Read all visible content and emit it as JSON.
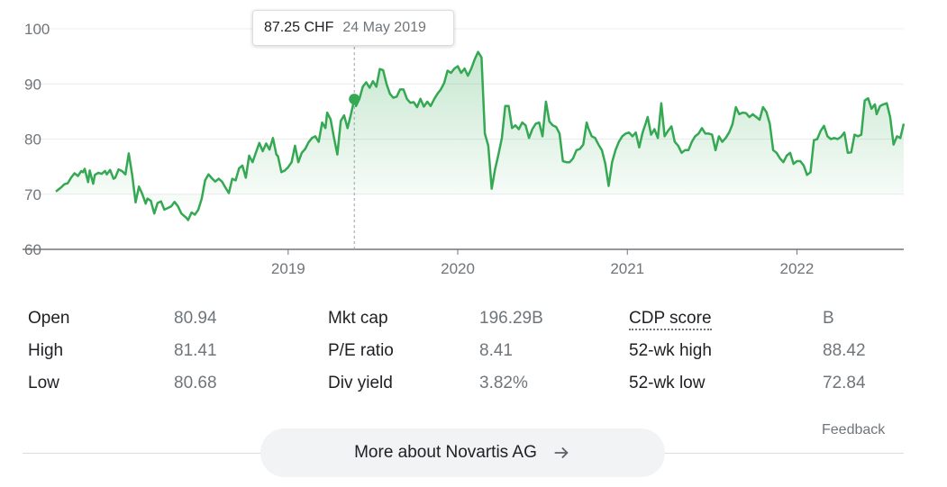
{
  "chart_data": {
    "type": "area",
    "title": "",
    "xlabel": "",
    "ylabel": "",
    "ylim": [
      60,
      100
    ],
    "y_ticks": [
      100,
      90,
      80,
      70,
      60
    ],
    "x_ticks": [
      {
        "label": "2019",
        "t": 2019.0
      },
      {
        "label": "2020",
        "t": 2020.0
      },
      {
        "label": "2021",
        "t": 2021.0
      },
      {
        "label": "2022",
        "t": 2022.0
      }
    ],
    "x_range": [
      2017.63,
      2022.63
    ],
    "currency": "CHF",
    "color": "#34a853",
    "fill_color": "#34a853",
    "series": [
      {
        "name": "Novartis AG",
        "points": [
          [
            2017.63,
            70.5
          ],
          [
            2017.66,
            71.2
          ],
          [
            2017.68,
            71.8
          ],
          [
            2017.7,
            72.0
          ],
          [
            2017.72,
            73.0
          ],
          [
            2017.74,
            73.8
          ],
          [
            2017.76,
            73.3
          ],
          [
            2017.78,
            74.2
          ],
          [
            2017.79,
            74.0
          ],
          [
            2017.8,
            74.6
          ],
          [
            2017.82,
            72.2
          ],
          [
            2017.83,
            74.3
          ],
          [
            2017.85,
            71.9
          ],
          [
            2017.86,
            73.5
          ],
          [
            2017.88,
            73.9
          ],
          [
            2017.9,
            73.7
          ],
          [
            2017.92,
            74.2
          ],
          [
            2017.93,
            73.6
          ],
          [
            2017.95,
            74.4
          ],
          [
            2017.97,
            72.8
          ],
          [
            2017.98,
            73.0
          ],
          [
            2018.0,
            74.5
          ],
          [
            2018.02,
            74.2
          ],
          [
            2018.04,
            73.6
          ],
          [
            2018.06,
            77.4
          ],
          [
            2018.08,
            73.5
          ],
          [
            2018.1,
            68.5
          ],
          [
            2018.12,
            71.4
          ],
          [
            2018.14,
            70.0
          ],
          [
            2018.16,
            68.3
          ],
          [
            2018.17,
            69.2
          ],
          [
            2018.19,
            68.8
          ],
          [
            2018.21,
            66.5
          ],
          [
            2018.23,
            68.4
          ],
          [
            2018.25,
            68.7
          ],
          [
            2018.27,
            67.2
          ],
          [
            2018.29,
            67.5
          ],
          [
            2018.31,
            67.8
          ],
          [
            2018.33,
            68.6
          ],
          [
            2018.35,
            67.8
          ],
          [
            2018.37,
            66.5
          ],
          [
            2018.4,
            65.7
          ],
          [
            2018.41,
            65.3
          ],
          [
            2018.43,
            66.7
          ],
          [
            2018.45,
            66.3
          ],
          [
            2018.47,
            67.2
          ],
          [
            2018.49,
            69.2
          ],
          [
            2018.51,
            72.5
          ],
          [
            2018.53,
            73.6
          ],
          [
            2018.55,
            72.9
          ],
          [
            2018.57,
            72.3
          ],
          [
            2018.59,
            72.8
          ],
          [
            2018.61,
            72.3
          ],
          [
            2018.63,
            71.2
          ],
          [
            2018.65,
            70.2
          ],
          [
            2018.67,
            72.8
          ],
          [
            2018.69,
            72.5
          ],
          [
            2018.71,
            74.7
          ],
          [
            2018.73,
            75.2
          ],
          [
            2018.75,
            73.0
          ],
          [
            2018.77,
            77.0
          ],
          [
            2018.79,
            75.8
          ],
          [
            2018.81,
            77.6
          ],
          [
            2018.83,
            79.3
          ],
          [
            2018.85,
            77.8
          ],
          [
            2018.87,
            79.2
          ],
          [
            2018.89,
            78.1
          ],
          [
            2018.91,
            80.2
          ],
          [
            2018.93,
            77.2
          ],
          [
            2018.94,
            76.9
          ],
          [
            2018.96,
            74.0
          ],
          [
            2018.98,
            74.3
          ],
          [
            2019.0,
            74.9
          ],
          [
            2019.02,
            75.8
          ],
          [
            2019.04,
            78.8
          ],
          [
            2019.06,
            75.8
          ],
          [
            2019.08,
            77.5
          ],
          [
            2019.1,
            78.2
          ],
          [
            2019.12,
            79.4
          ],
          [
            2019.14,
            80.2
          ],
          [
            2019.16,
            80.5
          ],
          [
            2019.18,
            79.5
          ],
          [
            2019.2,
            83.0
          ],
          [
            2019.22,
            82.0
          ],
          [
            2019.23,
            84.8
          ],
          [
            2019.25,
            83.6
          ],
          [
            2019.27,
            80.3
          ],
          [
            2019.29,
            77.2
          ],
          [
            2019.31,
            83.3
          ],
          [
            2019.33,
            84.3
          ],
          [
            2019.35,
            82.0
          ],
          [
            2019.37,
            84.5
          ],
          [
            2019.39,
            87.25
          ],
          [
            2019.4,
            86.0
          ],
          [
            2019.42,
            87.3
          ],
          [
            2019.44,
            89.5
          ],
          [
            2019.46,
            90.3
          ],
          [
            2019.48,
            89.3
          ],
          [
            2019.5,
            90.5
          ],
          [
            2019.52,
            89.5
          ],
          [
            2019.54,
            92.7
          ],
          [
            2019.56,
            92.5
          ],
          [
            2019.58,
            90.0
          ],
          [
            2019.6,
            88.2
          ],
          [
            2019.62,
            87.5
          ],
          [
            2019.64,
            87.7
          ],
          [
            2019.66,
            89.0
          ],
          [
            2019.68,
            89.0
          ],
          [
            2019.7,
            87.3
          ],
          [
            2019.72,
            86.6
          ],
          [
            2019.74,
            86.7
          ],
          [
            2019.76,
            85.8
          ],
          [
            2019.78,
            87.3
          ],
          [
            2019.8,
            85.9
          ],
          [
            2019.82,
            86.8
          ],
          [
            2019.84,
            86.0
          ],
          [
            2019.86,
            87.2
          ],
          [
            2019.88,
            88.2
          ],
          [
            2019.9,
            89.0
          ],
          [
            2019.92,
            90.2
          ],
          [
            2019.94,
            92.4
          ],
          [
            2019.96,
            92.0
          ],
          [
            2019.98,
            92.8
          ],
          [
            2020.0,
            93.2
          ],
          [
            2020.02,
            92.0
          ],
          [
            2020.04,
            92.8
          ],
          [
            2020.06,
            91.5
          ],
          [
            2020.08,
            92.8
          ],
          [
            2020.1,
            94.5
          ],
          [
            2020.12,
            95.8
          ],
          [
            2020.14,
            94.8
          ],
          [
            2020.16,
            81.0
          ],
          [
            2020.18,
            78.8
          ],
          [
            2020.2,
            71.0
          ],
          [
            2020.22,
            74.5
          ],
          [
            2020.24,
            77.2
          ],
          [
            2020.26,
            80.2
          ],
          [
            2020.28,
            86.0
          ],
          [
            2020.3,
            86.0
          ],
          [
            2020.32,
            82.0
          ],
          [
            2020.34,
            82.5
          ],
          [
            2020.36,
            81.8
          ],
          [
            2020.38,
            83.0
          ],
          [
            2020.4,
            82.5
          ],
          [
            2020.42,
            80.2
          ],
          [
            2020.44,
            81.8
          ],
          [
            2020.46,
            82.8
          ],
          [
            2020.48,
            83.0
          ],
          [
            2020.5,
            80.5
          ],
          [
            2020.52,
            86.8
          ],
          [
            2020.54,
            83.2
          ],
          [
            2020.56,
            82.5
          ],
          [
            2020.58,
            82.2
          ],
          [
            2020.6,
            81.0
          ],
          [
            2020.62,
            76.0
          ],
          [
            2020.64,
            75.8
          ],
          [
            2020.66,
            75.8
          ],
          [
            2020.68,
            76.5
          ],
          [
            2020.7,
            78.0
          ],
          [
            2020.72,
            78.2
          ],
          [
            2020.74,
            79.0
          ],
          [
            2020.76,
            83.0
          ],
          [
            2020.77,
            82.0
          ],
          [
            2020.79,
            80.5
          ],
          [
            2020.81,
            80.2
          ],
          [
            2020.83,
            79.0
          ],
          [
            2020.85,
            78.0
          ],
          [
            2020.87,
            75.5
          ],
          [
            2020.89,
            71.5
          ],
          [
            2020.91,
            75.8
          ],
          [
            2020.93,
            78.0
          ],
          [
            2020.95,
            79.5
          ],
          [
            2020.97,
            80.5
          ],
          [
            2020.99,
            81.0
          ],
          [
            2021.01,
            81.2
          ],
          [
            2021.03,
            80.5
          ],
          [
            2021.05,
            81.2
          ],
          [
            2021.07,
            78.5
          ],
          [
            2021.09,
            81.2
          ],
          [
            2021.11,
            83.0
          ],
          [
            2021.12,
            84.0
          ],
          [
            2021.14,
            80.8
          ],
          [
            2021.16,
            81.8
          ],
          [
            2021.18,
            80.2
          ],
          [
            2021.2,
            86.5
          ],
          [
            2021.22,
            80.5
          ],
          [
            2021.24,
            81.5
          ],
          [
            2021.26,
            82.3
          ],
          [
            2021.28,
            79.5
          ],
          [
            2021.3,
            78.8
          ],
          [
            2021.32,
            77.5
          ],
          [
            2021.34,
            78.0
          ],
          [
            2021.36,
            78.0
          ],
          [
            2021.38,
            79.5
          ],
          [
            2021.4,
            80.5
          ],
          [
            2021.42,
            81.0
          ],
          [
            2021.44,
            82.0
          ],
          [
            2021.46,
            81.0
          ],
          [
            2021.48,
            81.0
          ],
          [
            2021.5,
            80.8
          ],
          [
            2021.52,
            78.0
          ],
          [
            2021.54,
            80.5
          ],
          [
            2021.56,
            79.5
          ],
          [
            2021.58,
            80.2
          ],
          [
            2021.6,
            81.2
          ],
          [
            2021.62,
            82.7
          ],
          [
            2021.64,
            85.8
          ],
          [
            2021.66,
            84.5
          ],
          [
            2021.68,
            84.8
          ],
          [
            2021.7,
            84.7
          ],
          [
            2021.72,
            84.0
          ],
          [
            2021.74,
            84.5
          ],
          [
            2021.76,
            84.0
          ],
          [
            2021.78,
            83.5
          ],
          [
            2021.8,
            85.8
          ],
          [
            2021.82,
            84.9
          ],
          [
            2021.84,
            82.8
          ],
          [
            2021.86,
            78.0
          ],
          [
            2021.88,
            77.5
          ],
          [
            2021.9,
            76.5
          ],
          [
            2021.92,
            75.8
          ],
          [
            2021.94,
            77.0
          ],
          [
            2021.96,
            77.5
          ],
          [
            2021.98,
            75.5
          ],
          [
            2022.0,
            76.0
          ],
          [
            2022.02,
            76.0
          ],
          [
            2022.04,
            75.2
          ],
          [
            2022.06,
            73.5
          ],
          [
            2022.08,
            74.0
          ],
          [
            2022.1,
            79.8
          ],
          [
            2022.12,
            80.0
          ],
          [
            2022.14,
            81.5
          ],
          [
            2022.16,
            82.4
          ],
          [
            2022.18,
            80.5
          ],
          [
            2022.2,
            80.0
          ],
          [
            2022.22,
            80.2
          ],
          [
            2022.24,
            80.0
          ],
          [
            2022.26,
            80.4
          ],
          [
            2022.28,
            81.2
          ],
          [
            2022.3,
            77.5
          ],
          [
            2022.32,
            77.6
          ],
          [
            2022.34,
            80.8
          ],
          [
            2022.36,
            80.5
          ],
          [
            2022.38,
            80.8
          ],
          [
            2022.4,
            87.0
          ],
          [
            2022.42,
            87.4
          ],
          [
            2022.44,
            85.5
          ],
          [
            2022.46,
            86.3
          ],
          [
            2022.47,
            84.5
          ],
          [
            2022.49,
            86.0
          ],
          [
            2022.51,
            86.3
          ],
          [
            2022.53,
            86.5
          ],
          [
            2022.55,
            84.0
          ],
          [
            2022.57,
            79.0
          ],
          [
            2022.59,
            80.5
          ],
          [
            2022.61,
            80.2
          ],
          [
            2022.63,
            82.8
          ]
        ]
      }
    ],
    "highlight": {
      "t": 2019.39,
      "value": 87.25
    }
  },
  "tooltip": {
    "price": "87.25 CHF",
    "date": "24 May 2019"
  },
  "stats": {
    "col1": [
      {
        "label": "Open",
        "value": "80.94"
      },
      {
        "label": "High",
        "value": "81.41"
      },
      {
        "label": "Low",
        "value": "80.68"
      }
    ],
    "col2": [
      {
        "label": "Mkt cap",
        "value": "196.29B"
      },
      {
        "label": "P/E ratio",
        "value": "8.41"
      },
      {
        "label": "Div yield",
        "value": "3.82%"
      }
    ],
    "col3": [
      {
        "label": "CDP score",
        "value": "B"
      },
      {
        "label": "52-wk high",
        "value": "88.42"
      },
      {
        "label": "52-wk low",
        "value": "72.84"
      }
    ]
  },
  "feedback_label": "Feedback",
  "more_button": {
    "label": "More about Novartis AG",
    "icon": "arrow-right-icon"
  }
}
